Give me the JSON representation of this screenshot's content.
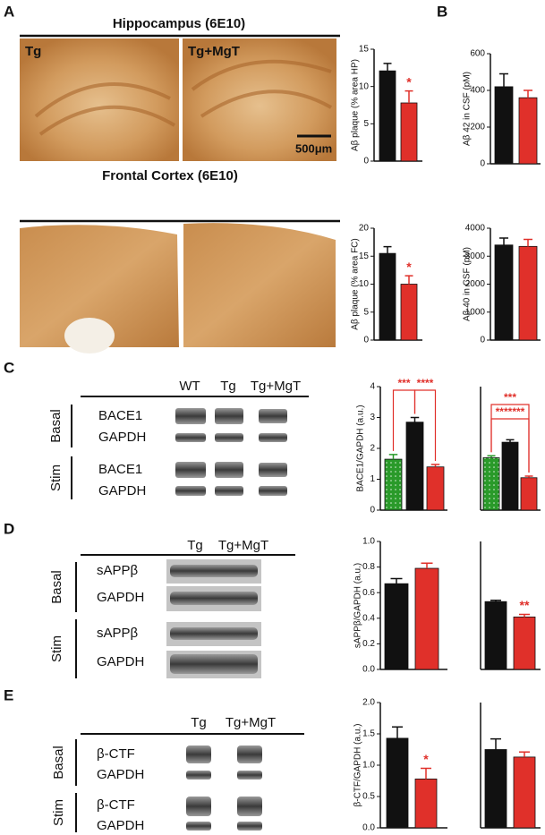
{
  "panel_labels": [
    "A",
    "B",
    "C",
    "D",
    "E"
  ],
  "panel_a": {
    "hippocampus_title": "Hippocampus (6E10)",
    "cortex_title": "Frontal Cortex (6E10)",
    "image_labels": [
      "Tg",
      "Tg+MgT"
    ],
    "scale_bar": "500μm"
  },
  "panel_c": {
    "columns": [
      "WT",
      "Tg",
      "Tg+MgT"
    ],
    "conditions": [
      "Basal",
      "Stim"
    ],
    "bands": [
      "BACE1",
      "GAPDH"
    ]
  },
  "panel_d": {
    "columns": [
      "Tg",
      "Tg+MgT"
    ],
    "conditions": [
      "Basal",
      "Stim"
    ],
    "bands": [
      "sAPPβ",
      "GAPDH"
    ]
  },
  "panel_e": {
    "columns": [
      "Tg",
      "Tg+MgT"
    ],
    "conditions": [
      "Basal",
      "Stim"
    ],
    "bands": [
      "β-CTF",
      "GAPDH"
    ]
  },
  "chart_data": [
    {
      "type": "bar",
      "ylabel": "Aβ  plaque (% area HP)",
      "values": [
        12.1,
        7.8
      ],
      "errors": [
        1.0,
        1.6
      ],
      "colors": [
        "#111111",
        "#e0302a"
      ],
      "ylim": [
        0,
        15
      ],
      "yticks": [
        0,
        5,
        10,
        15
      ],
      "annotations": [
        "*"
      ]
    },
    {
      "type": "bar",
      "ylabel": "Aβ  plaque (% area FC)",
      "values": [
        15.5,
        10.0
      ],
      "errors": [
        1.2,
        1.5
      ],
      "colors": [
        "#111111",
        "#e0302a"
      ],
      "ylim": [
        0,
        20
      ],
      "yticks": [
        0,
        5,
        10,
        15,
        20
      ],
      "annotations": [
        "*"
      ]
    },
    {
      "type": "bar",
      "ylabel": "Aβ 42 in CSF (pM)",
      "values": [
        420,
        360
      ],
      "errors": [
        70,
        40
      ],
      "colors": [
        "#111111",
        "#e0302a"
      ],
      "ylim": [
        0,
        600
      ],
      "yticks": [
        0,
        200,
        400,
        600
      ]
    },
    {
      "type": "bar",
      "ylabel": "Aβ 40 in CSF (pM)",
      "values": [
        3400,
        3350
      ],
      "errors": [
        250,
        250
      ],
      "colors": [
        "#111111",
        "#e0302a"
      ],
      "ylim": [
        0,
        4000
      ],
      "yticks": [
        0,
        1000,
        2000,
        3000,
        4000
      ]
    },
    {
      "type": "bar",
      "ylabel": "BACE1/GAPDH (a.u.)",
      "values": [
        1.65,
        2.85,
        1.4
      ],
      "errors": [
        0.15,
        0.15,
        0.08
      ],
      "colors": [
        "#2a9a2a",
        "#111111",
        "#e0302a"
      ],
      "ylim": [
        0,
        4
      ],
      "yticks": [
        0,
        1,
        2,
        3,
        4
      ],
      "annotations": [
        "***",
        "****"
      ]
    },
    {
      "type": "bar",
      "values": [
        1.7,
        2.2,
        1.05
      ],
      "errors": [
        0.06,
        0.08,
        0.05
      ],
      "colors": [
        "#2a9a2a",
        "#111111",
        "#e0302a"
      ],
      "ylim": [
        0,
        4
      ],
      "annotations": [
        "***",
        "*******"
      ]
    },
    {
      "type": "bar",
      "ylabel": "sAPPβ/GAPDH (a.u.)",
      "values": [
        0.67,
        0.79
      ],
      "errors": [
        0.04,
        0.04
      ],
      "colors": [
        "#111111",
        "#e0302a"
      ],
      "ylim": [
        0,
        1
      ],
      "yticks": [
        {
          "value": 0,
          "label": "0.0"
        },
        0.2,
        0.4,
        0.6,
        0.8,
        {
          "value": 1,
          "label": "1.0"
        }
      ]
    },
    {
      "type": "bar",
      "values": [
        0.53,
        0.41
      ],
      "errors": [
        0.01,
        0.02
      ],
      "colors": [
        "#111111",
        "#e0302a"
      ],
      "ylim": [
        0,
        1
      ],
      "annotations": [
        "**"
      ]
    },
    {
      "type": "bar",
      "ylabel": "β-CTF/GAPDH (a.u.)",
      "values": [
        1.43,
        0.78
      ],
      "errors": [
        0.18,
        0.17
      ],
      "colors": [
        "#111111",
        "#e0302a"
      ],
      "ylim": [
        0,
        2
      ],
      "yticks": [
        {
          "value": 0,
          "label": "0.0"
        },
        0.5,
        {
          "value": 1,
          "label": "1.0"
        },
        1.5,
        {
          "value": 2,
          "label": "2.0"
        }
      ],
      "annotations": [
        "*"
      ]
    },
    {
      "type": "bar",
      "values": [
        1.25,
        1.13
      ],
      "errors": [
        0.17,
        0.08
      ],
      "colors": [
        "#111111",
        "#e0302a"
      ],
      "ylim": [
        0,
        2
      ]
    }
  ]
}
